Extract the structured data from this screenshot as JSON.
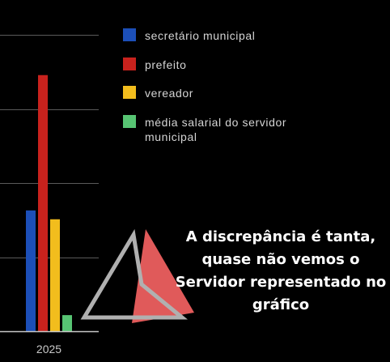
{
  "chart_data": {
    "type": "bar",
    "categories": [
      "2025"
    ],
    "series": [
      {
        "name": "secretário municipal",
        "values": [
          150
        ],
        "color": "#1c4fb8"
      },
      {
        "name": "prefeito",
        "values": [
          318
        ],
        "color": "#c8221d"
      },
      {
        "name": "vereador",
        "values": [
          139
        ],
        "color": "#f2bd1d"
      },
      {
        "name": "média salarial do servidor municipal",
        "values": [
          20
        ],
        "color": "#57c473"
      }
    ],
    "ylim": [
      0,
      368
    ],
    "gridlines": [
      92,
      184,
      276,
      368
    ],
    "grid": true,
    "legend": "top-right",
    "title": "",
    "xlabel": "",
    "ylabel": ""
  },
  "legend": {
    "items": [
      "secretário municipal",
      "prefeito",
      "vereador",
      "média salarial do servidor municipal"
    ]
  },
  "annotation": {
    "lines": [
      "A discrepância é tanta,",
      "quase não vemos o",
      "Servidor representado no",
      "gráfico"
    ],
    "arrow_icon": "triangle-arrow-icon",
    "arrow_fill": "#e05a5a",
    "arrow_outline": "#b0b0b0"
  },
  "colors": {
    "background": "#000000",
    "grid": "#5a5a5a",
    "axis": "#c8c8c8",
    "text": "#d4d4d4"
  }
}
